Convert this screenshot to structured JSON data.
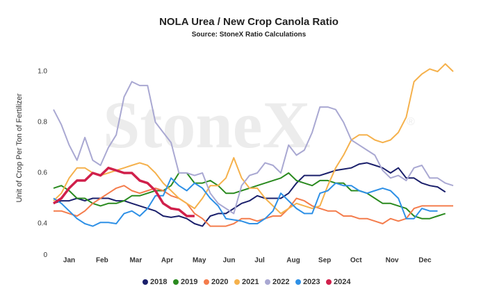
{
  "chart_data": {
    "type": "line",
    "title": "NOLA Urea / New Crop Canola Ratio",
    "subtitle": "Source: StoneX Ratio Calculations",
    "y_label": "Unit of Crop Per Ton of Fertilizer",
    "watermark": "StoneX",
    "watermark_mark": "®",
    "x": [
      1,
      2,
      3,
      4,
      5,
      6,
      7,
      8,
      9,
      10,
      11,
      12,
      13,
      14,
      15,
      16,
      17,
      18,
      19,
      20,
      21,
      22,
      23,
      24,
      25,
      26,
      27,
      28,
      29,
      30,
      31,
      32,
      33,
      34,
      35,
      36,
      37,
      38,
      39,
      40,
      41,
      42,
      43,
      44,
      45,
      46,
      47,
      48,
      49,
      50,
      51,
      52
    ],
    "xlim": [
      1,
      52
    ],
    "xticks": [
      {
        "value": 3,
        "label": "Jan"
      },
      {
        "value": 7.2,
        "label": "Feb"
      },
      {
        "value": 11.5,
        "label": "Mar"
      },
      {
        "value": 15.5,
        "label": "Apr"
      },
      {
        "value": 19.6,
        "label": "May"
      },
      {
        "value": 23.4,
        "label": "Jun"
      },
      {
        "value": 27.3,
        "label": "Jul"
      },
      {
        "value": 31.6,
        "label": "Aug"
      },
      {
        "value": 35.6,
        "label": "Sep"
      },
      {
        "value": 39.6,
        "label": "Oct"
      },
      {
        "value": 44.2,
        "label": "Nov"
      },
      {
        "value": 48.4,
        "label": "Dec"
      }
    ],
    "ylim": [
      0.275,
      1.05
    ],
    "yticks": [
      {
        "value": 0.275,
        "label": "0"
      },
      0.4,
      0.6,
      0.8,
      {
        "value": 1.0,
        "label": "1.0"
      }
    ],
    "grid": false,
    "legend": "bottom",
    "series": [
      {
        "name": "2018",
        "color": "#1a1f6b",
        "values": [
          0.48,
          0.49,
          0.49,
          0.5,
          0.49,
          0.5,
          0.5,
          0.5,
          0.49,
          0.49,
          0.48,
          0.47,
          0.46,
          0.45,
          0.43,
          0.425,
          0.43,
          0.42,
          0.4,
          0.39,
          0.43,
          0.44,
          0.44,
          0.46,
          0.48,
          0.49,
          0.51,
          0.5,
          0.5,
          0.5,
          0.52,
          0.56,
          0.59,
          0.59,
          0.59,
          0.6,
          0.61,
          0.615,
          0.62,
          0.635,
          0.64,
          0.63,
          0.62,
          0.6,
          0.62,
          0.58,
          0.58,
          0.56,
          0.55,
          0.545,
          0.525,
          null
        ]
      },
      {
        "name": "2019",
        "color": "#2a8a1f",
        "values": [
          0.54,
          0.55,
          0.53,
          0.5,
          0.5,
          0.48,
          0.47,
          0.48,
          0.48,
          0.49,
          0.51,
          0.51,
          0.52,
          0.53,
          0.53,
          0.55,
          0.6,
          0.6,
          0.56,
          0.56,
          0.57,
          0.55,
          0.52,
          0.52,
          0.53,
          0.54,
          0.55,
          0.56,
          0.57,
          0.58,
          0.6,
          0.57,
          0.56,
          0.55,
          0.57,
          0.57,
          0.56,
          0.56,
          0.53,
          0.53,
          0.52,
          0.5,
          0.48,
          0.48,
          0.47,
          0.46,
          0.43,
          0.42,
          0.42,
          0.43,
          0.44,
          null
        ]
      },
      {
        "name": "2020",
        "color": "#f47c4c",
        "values": [
          0.45,
          0.45,
          0.44,
          0.43,
          0.45,
          0.48,
          0.5,
          0.52,
          0.54,
          0.55,
          0.53,
          0.52,
          0.53,
          0.54,
          0.53,
          0.51,
          0.5,
          0.48,
          0.44,
          0.42,
          0.39,
          0.39,
          0.39,
          0.4,
          0.42,
          0.42,
          0.41,
          0.42,
          0.43,
          0.43,
          0.46,
          0.5,
          0.49,
          0.47,
          0.46,
          0.45,
          0.45,
          0.43,
          0.43,
          0.42,
          0.42,
          0.41,
          0.4,
          0.42,
          0.41,
          0.42,
          0.46,
          0.47,
          0.47,
          0.47,
          0.47,
          0.47
        ]
      },
      {
        "name": "2021",
        "color": "#f5b14c",
        "values": [
          0.49,
          0.52,
          0.58,
          0.62,
          0.62,
          0.6,
          0.59,
          0.6,
          0.61,
          0.62,
          0.63,
          0.64,
          0.63,
          0.6,
          0.56,
          0.53,
          0.5,
          0.48,
          0.46,
          0.5,
          0.55,
          0.55,
          0.58,
          0.66,
          0.58,
          0.54,
          0.54,
          0.5,
          0.47,
          0.44,
          0.46,
          0.48,
          0.47,
          0.46,
          0.47,
          0.55,
          0.62,
          0.67,
          0.73,
          0.75,
          0.75,
          0.73,
          0.72,
          0.73,
          0.76,
          0.82,
          0.96,
          0.99,
          1.01,
          1.0,
          1.03,
          1.0
        ]
      },
      {
        "name": "2022",
        "color": "#a9a8d2",
        "values": [
          0.85,
          0.79,
          0.71,
          0.65,
          0.74,
          0.65,
          0.63,
          0.7,
          0.75,
          0.9,
          0.96,
          0.945,
          0.945,
          0.8,
          0.76,
          0.72,
          0.6,
          0.6,
          0.59,
          0.6,
          0.52,
          0.48,
          0.46,
          0.44,
          0.55,
          0.59,
          0.6,
          0.64,
          0.63,
          0.6,
          0.71,
          0.67,
          0.69,
          0.76,
          0.86,
          0.86,
          0.85,
          0.8,
          0.73,
          0.71,
          0.69,
          0.67,
          0.61,
          0.58,
          0.59,
          0.57,
          0.62,
          0.63,
          0.58,
          0.58,
          0.56,
          0.55
        ]
      },
      {
        "name": "2023",
        "color": "#2e90e6",
        "values": [
          0.5,
          0.48,
          0.45,
          0.42,
          0.4,
          0.39,
          0.405,
          0.405,
          0.4,
          0.44,
          0.45,
          0.43,
          0.46,
          0.51,
          0.51,
          0.58,
          0.55,
          0.53,
          0.56,
          0.54,
          0.5,
          0.47,
          0.42,
          0.415,
          0.41,
          0.4,
          0.4,
          0.42,
          0.45,
          0.52,
          0.49,
          0.46,
          0.44,
          0.44,
          0.52,
          0.53,
          0.56,
          0.55,
          0.55,
          0.53,
          0.52,
          0.53,
          0.54,
          0.53,
          0.5,
          0.42,
          0.42,
          0.46,
          0.45,
          0.45,
          null,
          null
        ]
      },
      {
        "name": "2024",
        "color": "#d0204b",
        "width": 3.5,
        "values": [
          0.48,
          0.5,
          0.54,
          0.57,
          0.57,
          0.6,
          0.59,
          0.62,
          0.61,
          0.6,
          0.6,
          0.57,
          0.56,
          0.53,
          0.48,
          0.46,
          0.455,
          0.43,
          0.43,
          null,
          null,
          null,
          null,
          null,
          null,
          null,
          null,
          null,
          null,
          null,
          null,
          null,
          null,
          null,
          null,
          null,
          null,
          null,
          null,
          null,
          null,
          null,
          null,
          null,
          null,
          null,
          null,
          null,
          null,
          null,
          null,
          null
        ]
      }
    ]
  }
}
